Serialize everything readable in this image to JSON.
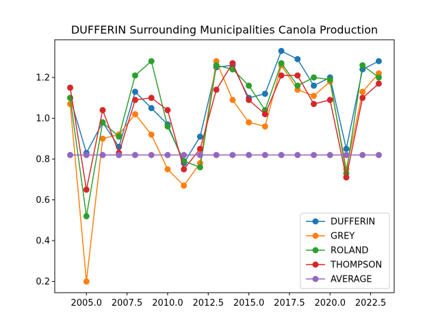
{
  "chart_data": {
    "type": "line",
    "title": "DUFFERIN Surrounding Municipalities Canola Production",
    "xlabel": "",
    "ylabel": "",
    "xlim": [
      2003.05,
      2023.95
    ],
    "ylim": [
      0.145,
      1.385
    ],
    "xticks": [
      2005.0,
      2007.5,
      2010.0,
      2012.5,
      2015.0,
      2017.5,
      2020.0,
      2022.5
    ],
    "xtick_labels": [
      "2005.0",
      "2007.5",
      "2010.0",
      "2012.5",
      "2015.0",
      "2017.5",
      "2020.0",
      "2022.5"
    ],
    "yticks": [
      0.2,
      0.4,
      0.6,
      0.8,
      1.0,
      1.2
    ],
    "ytick_labels": [
      "0.2",
      "0.4",
      "0.6",
      "0.8",
      "1.0",
      "1.2"
    ],
    "grid": false,
    "legend_position": "lower-right",
    "x": [
      2004,
      2005,
      2006,
      2007,
      2008,
      2009,
      2010,
      2011,
      2012,
      2013,
      2014,
      2015,
      2016,
      2017,
      2018,
      2019,
      2020,
      2021,
      2022,
      2023
    ],
    "series": [
      {
        "name": "DUFFERIN",
        "color": "#1f77b4",
        "values": [
          1.1,
          0.83,
          0.98,
          0.86,
          1.13,
          1.05,
          0.97,
          0.78,
          0.91,
          1.25,
          1.26,
          1.1,
          1.12,
          1.33,
          1.29,
          1.16,
          1.2,
          0.85,
          1.24,
          1.28
        ]
      },
      {
        "name": "GREY",
        "color": "#ff7f0e",
        "values": [
          1.07,
          0.2,
          0.9,
          0.92,
          1.02,
          0.92,
          0.75,
          0.67,
          0.78,
          1.28,
          1.09,
          0.98,
          0.96,
          1.26,
          1.14,
          1.11,
          1.18,
          0.75,
          1.13,
          1.22
        ]
      },
      {
        "name": "ROLAND",
        "color": "#2ca02c",
        "values": [
          1.1,
          0.52,
          0.98,
          0.91,
          1.21,
          1.28,
          0.96,
          0.79,
          0.76,
          1.26,
          1.24,
          1.16,
          1.04,
          1.27,
          1.16,
          1.2,
          1.19,
          0.73,
          1.26,
          1.2
        ]
      },
      {
        "name": "THOMPSON",
        "color": "#d62728",
        "values": [
          1.15,
          0.65,
          1.04,
          0.83,
          1.09,
          1.1,
          1.04,
          0.75,
          0.85,
          1.14,
          1.27,
          1.09,
          1.02,
          1.21,
          1.21,
          1.07,
          1.09,
          0.71,
          1.1,
          1.17
        ]
      },
      {
        "name": "AVERAGE",
        "color": "#9467bd",
        "values": [
          0.82,
          0.82,
          0.82,
          0.82,
          0.82,
          0.82,
          0.82,
          0.82,
          0.82,
          0.82,
          0.82,
          0.82,
          0.82,
          0.82,
          0.82,
          0.82,
          0.82,
          0.82,
          0.82,
          0.82
        ]
      }
    ]
  }
}
